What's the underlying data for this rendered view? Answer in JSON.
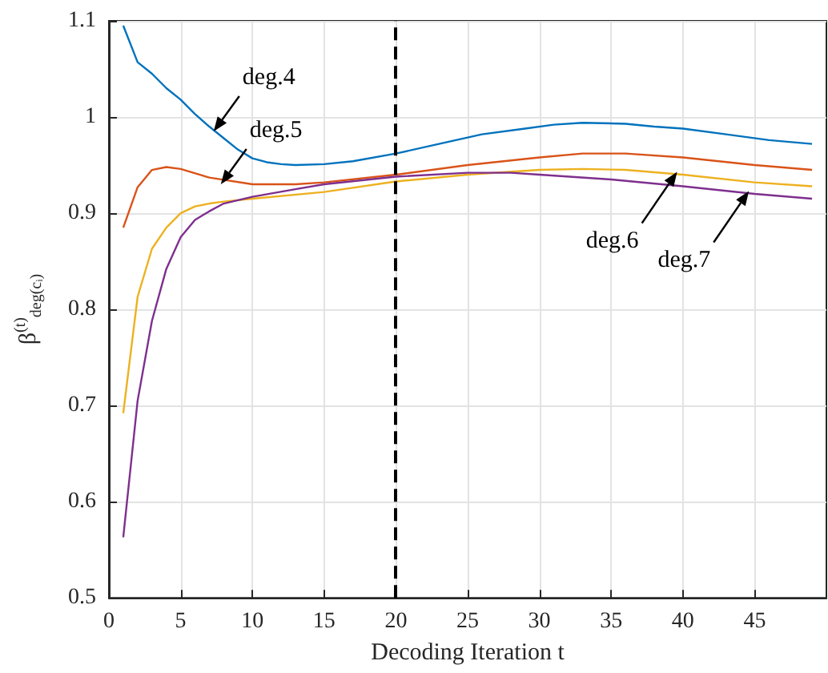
{
  "chart_data": {
    "type": "line",
    "xlabel": "Decoding Iteration t",
    "ylabel": "β$^{(t)}$$_{deg(cᵢ)}$",
    "xlim": [
      0,
      50
    ],
    "xticks": [
      0,
      5,
      10,
      15,
      20,
      25,
      30,
      35,
      40,
      45
    ],
    "ylim": [
      0.5,
      1.1
    ],
    "yticks": [
      0.5,
      0.6,
      0.7,
      0.8,
      0.9,
      1,
      1.1
    ],
    "grid": true,
    "marker": "none",
    "line_style": "solid",
    "series": [
      {
        "color": "#0072bd",
        "x": [
          1,
          2,
          3,
          4,
          5,
          6,
          7,
          8,
          9,
          10,
          11,
          12,
          13,
          15,
          17,
          20,
          23,
          26,
          29,
          31,
          33,
          36,
          38,
          40,
          43,
          46,
          49
        ],
        "values": [
          1.095,
          1.057,
          1.045,
          1.03,
          1.018,
          1.003,
          0.99,
          0.978,
          0.966,
          0.957,
          0.953,
          0.951,
          0.95,
          0.951,
          0.954,
          0.962,
          0.972,
          0.982,
          0.988,
          0.992,
          0.994,
          0.993,
          0.99,
          0.988,
          0.982,
          0.976,
          0.972
        ]
      },
      {
        "color": "#d95319",
        "x": [
          1,
          2,
          3,
          4,
          5,
          7,
          10,
          13,
          15,
          20,
          25,
          30,
          33,
          36,
          40,
          45,
          49
        ],
        "values": [
          0.885,
          0.927,
          0.945,
          0.948,
          0.946,
          0.937,
          0.93,
          0.93,
          0.932,
          0.94,
          0.95,
          0.958,
          0.962,
          0.962,
          0.958,
          0.95,
          0.945
        ]
      },
      {
        "color": "#edb120",
        "x": [
          1,
          2,
          3,
          4,
          5,
          6,
          7,
          8,
          10,
          15,
          20,
          25,
          30,
          33,
          36,
          40,
          45,
          49
        ],
        "values": [
          0.692,
          0.813,
          0.863,
          0.885,
          0.9,
          0.907,
          0.91,
          0.912,
          0.915,
          0.922,
          0.933,
          0.94,
          0.945,
          0.946,
          0.945,
          0.94,
          0.932,
          0.928
        ]
      },
      {
        "color": "#7e2f8e",
        "x": [
          1,
          2,
          3,
          4,
          5,
          6,
          7,
          8,
          10,
          13,
          15,
          20,
          25,
          28,
          30,
          35,
          40,
          45,
          49
        ],
        "values": [
          0.563,
          0.705,
          0.788,
          0.842,
          0.875,
          0.893,
          0.902,
          0.91,
          0.917,
          0.925,
          0.93,
          0.938,
          0.942,
          0.942,
          0.94,
          0.935,
          0.928,
          0.92,
          0.915
        ]
      }
    ],
    "ref_lines": [
      {
        "axis": "x",
        "value": 20,
        "color": "#000000",
        "line_style": "dashed"
      }
    ],
    "annotations": [
      {
        "text": "deg.4",
        "x": 7.3,
        "y": 0.985
      },
      {
        "text": "deg.5",
        "x": 7.8,
        "y": 0.93
      },
      {
        "text": "deg.6",
        "x": 39.6,
        "y": 0.943
      },
      {
        "text": "deg.7",
        "x": 44.6,
        "y": 0.923
      }
    ]
  }
}
